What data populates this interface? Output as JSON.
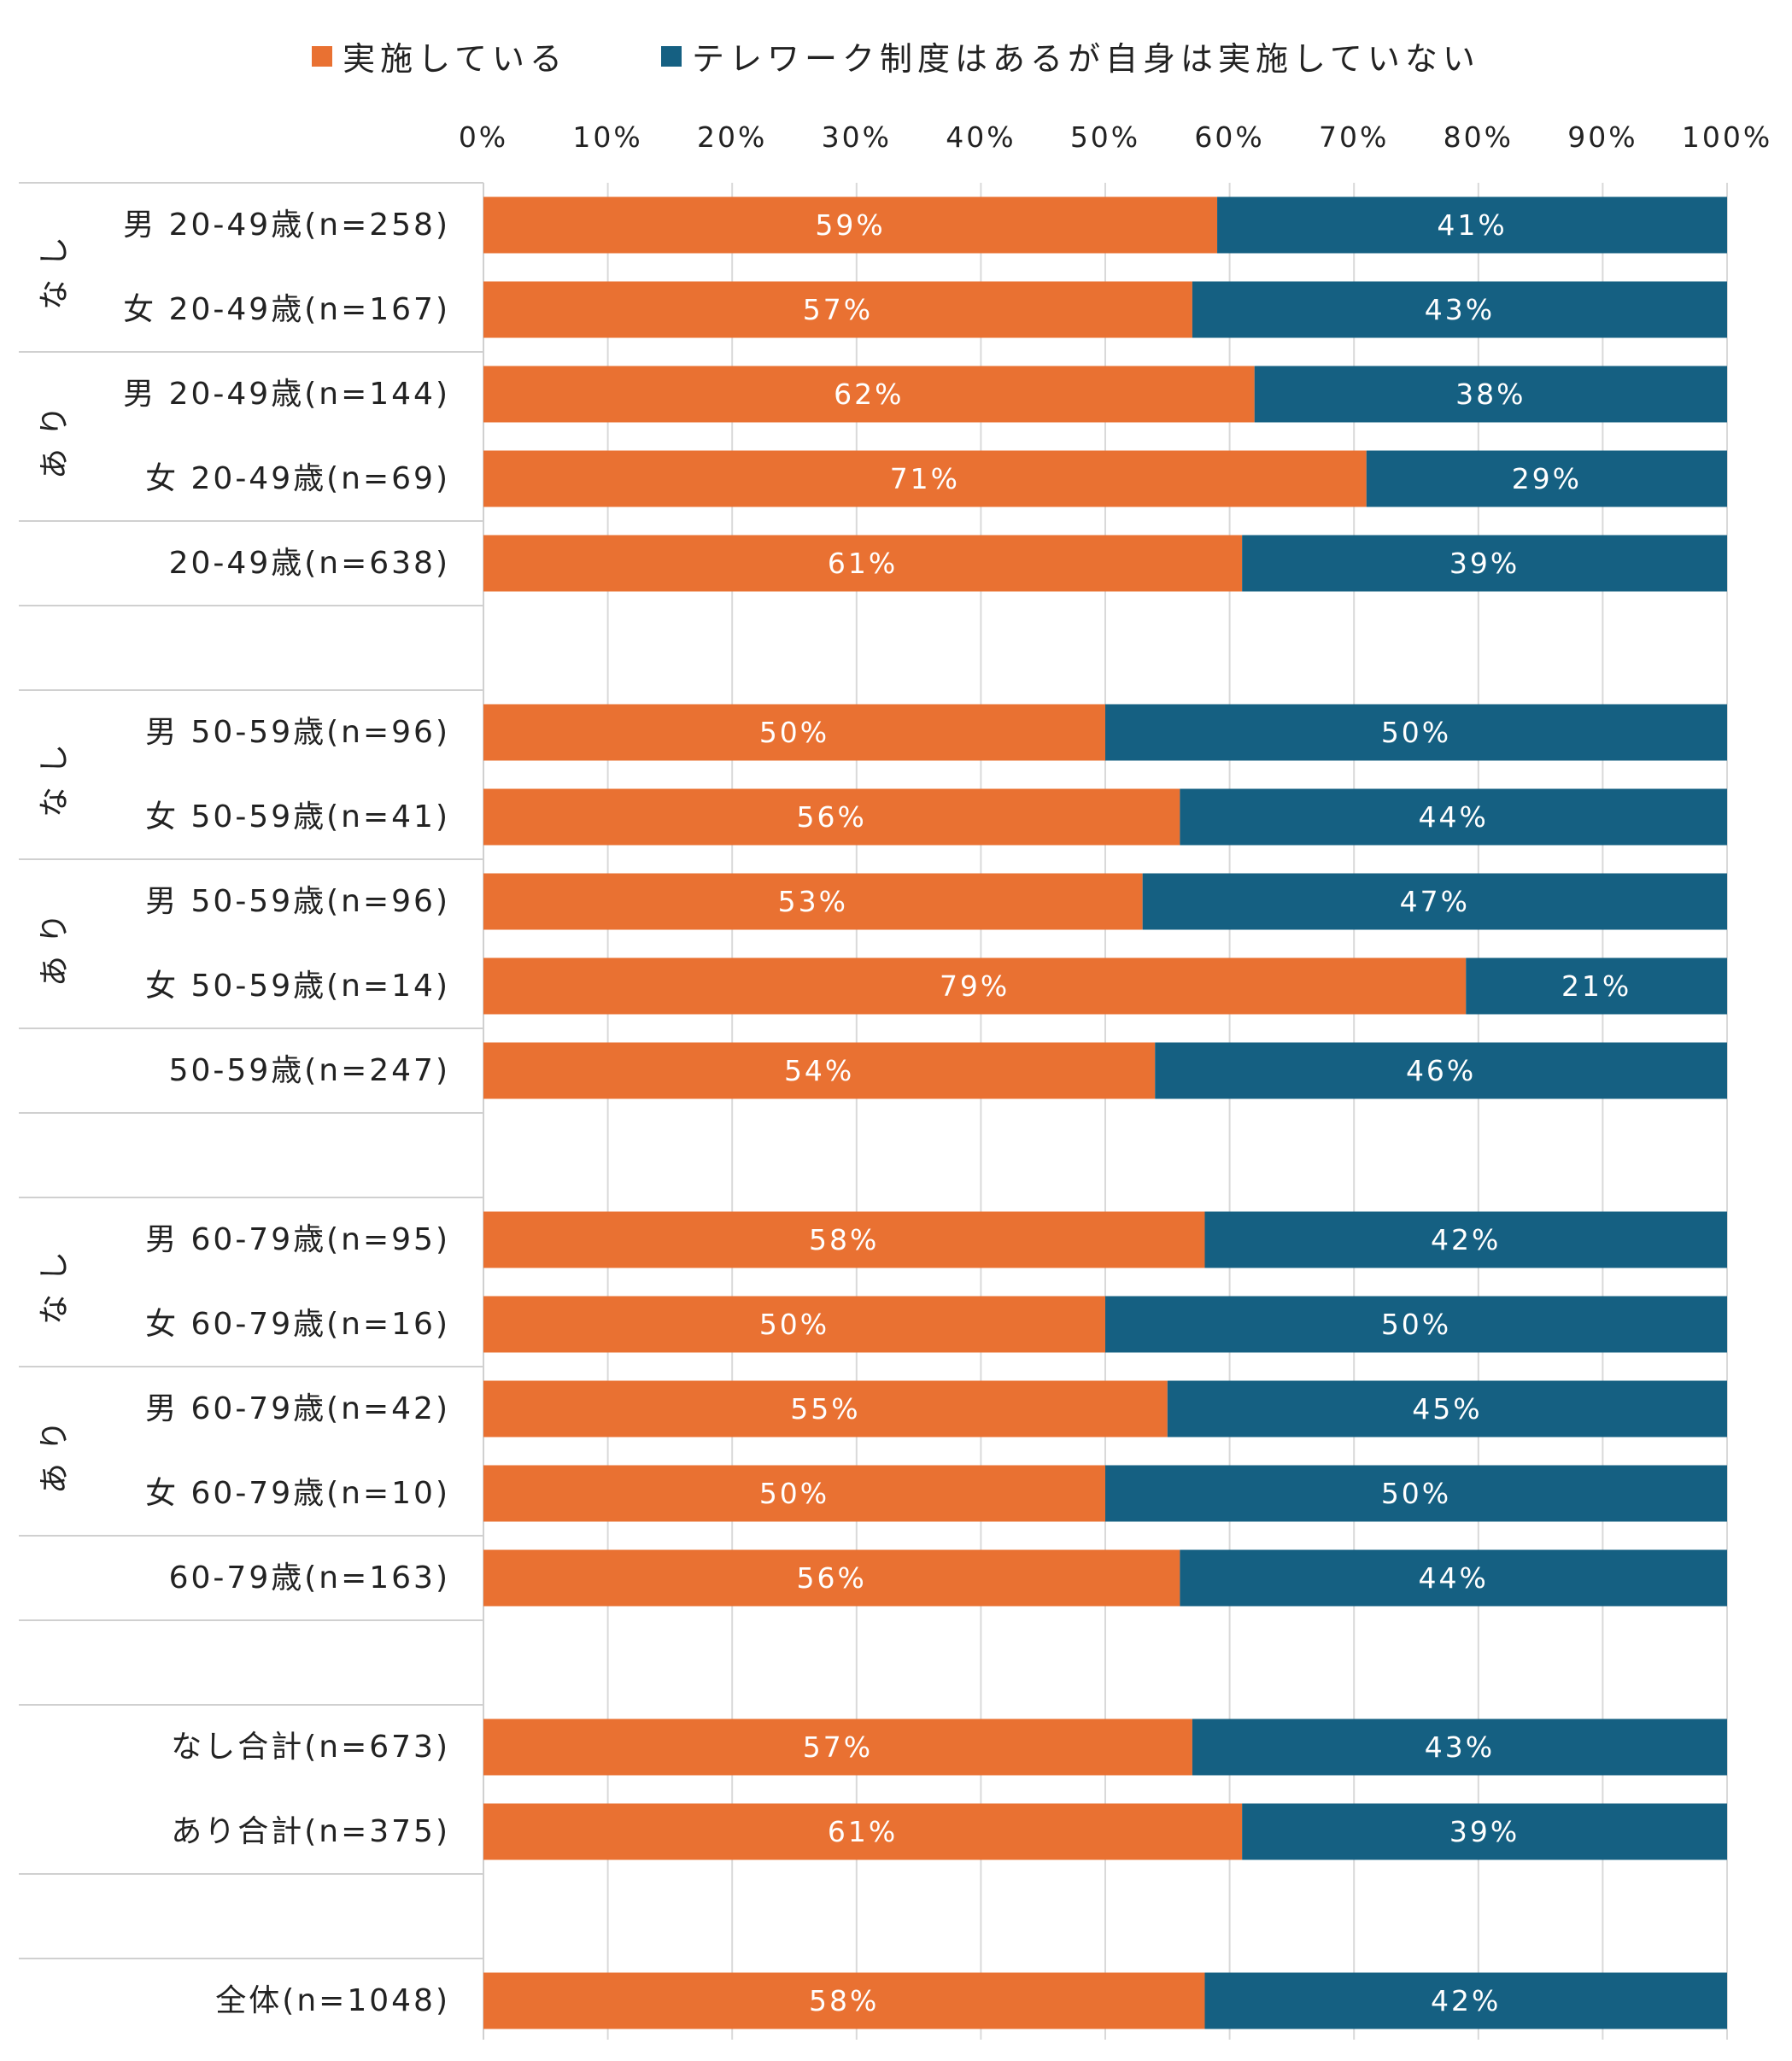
{
  "legend": {
    "implemented_label": "実施している",
    "not_implemented_label": "テレワーク制度はあるが自身は実施していない"
  },
  "colors": {
    "implemented": "#E97132",
    "not_implemented": "#156082",
    "grid": "#d9d9d9",
    "divider": "#d0d0d0"
  },
  "chart_data": {
    "type": "bar",
    "orientation": "horizontal",
    "stacked": true,
    "percent_stacked": true,
    "xlim": [
      0,
      100
    ],
    "x_ticks": [
      "0%",
      "10%",
      "20%",
      "30%",
      "40%",
      "50%",
      "60%",
      "70%",
      "80%",
      "90%",
      "100%"
    ],
    "grid": true,
    "legend_position": "top",
    "categories": [
      "男 20-49歳(n=258)",
      "女 20-49歳(n=167)",
      "男 20-49歳(n=144)",
      "女 20-49歳(n=69)",
      "20-49歳(n=638)",
      "",
      "男 50-59歳(n=96)",
      "女 50-59歳(n=41)",
      "男 50-59歳(n=96)",
      "女 50-59歳(n=14)",
      "50-59歳(n=247)",
      "",
      "男 60-79歳(n=95)",
      "女 60-79歳(n=16)",
      "男 60-79歳(n=42)",
      "女 60-79歳(n=10)",
      "60-79歳(n=163)",
      "",
      "なし合計(n=673)",
      "あり合計(n=375)",
      "",
      "全体(n=1048)"
    ],
    "series": [
      {
        "name": "実施している",
        "values": [
          59,
          57,
          62,
          71,
          61,
          null,
          50,
          56,
          53,
          79,
          54,
          null,
          58,
          50,
          55,
          50,
          56,
          null,
          57,
          61,
          null,
          58
        ],
        "labels": [
          "59%",
          "57%",
          "62%",
          "71%",
          "61%",
          "",
          "50%",
          "56%",
          "53%",
          "79%",
          "54%",
          "",
          "58%",
          "50%",
          "55%",
          "50%",
          "56%",
          "",
          "57%",
          "61%",
          "",
          "58%"
        ]
      },
      {
        "name": "テレワーク制度はあるが自身は実施していない",
        "values": [
          41,
          43,
          38,
          29,
          39,
          null,
          50,
          44,
          47,
          21,
          46,
          null,
          42,
          50,
          45,
          50,
          44,
          null,
          43,
          39,
          null,
          42
        ],
        "labels": [
          "41%",
          "43%",
          "38%",
          "29%",
          "39%",
          "",
          "50%",
          "44%",
          "47%",
          "21%",
          "46%",
          "",
          "42%",
          "50%",
          "45%",
          "50%",
          "44%",
          "",
          "43%",
          "39%",
          "",
          "42%"
        ]
      }
    ],
    "groups": [
      {
        "label": "なし",
        "rows": [
          0,
          1
        ]
      },
      {
        "label": "あり",
        "rows": [
          2,
          3
        ]
      },
      {
        "label": "なし",
        "rows": [
          6,
          7
        ]
      },
      {
        "label": "あり",
        "rows": [
          8,
          9
        ]
      },
      {
        "label": "なし",
        "rows": [
          12,
          13
        ]
      },
      {
        "label": "あり",
        "rows": [
          14,
          15
        ]
      }
    ]
  }
}
